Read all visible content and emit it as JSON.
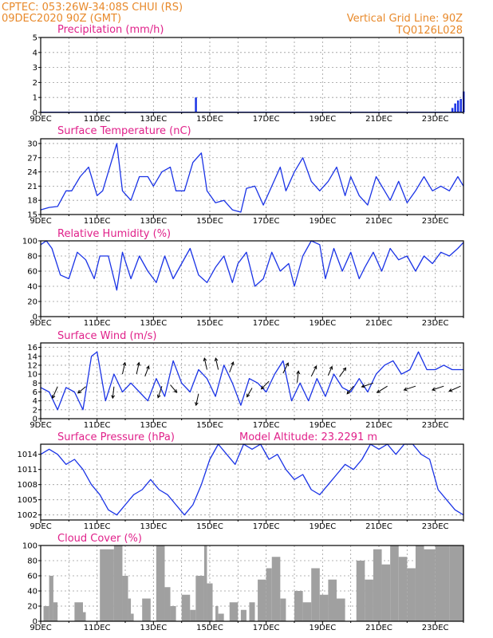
{
  "header": {
    "left_line1": "CPTEC:   053:26W-34:08S   CHUI (RS)",
    "left_line2": "09DEC2020 90Z (GMT)",
    "right_line1": "Vertical Grid Line: 90Z",
    "right_line2": "TQ0126L028"
  },
  "colors": {
    "header": "#e8892a",
    "title": "#e0218a",
    "series": "#1a33e6",
    "cloud": "#a0a0a0"
  },
  "x_tick_labels": [
    "9DEC",
    "11DEC",
    "13DEC",
    "15DEC",
    "17DEC",
    "19DEC",
    "21DEC",
    "23DEC"
  ],
  "panels": {
    "precip": {
      "title": "Precipitation (mm/h)"
    },
    "temp": {
      "title": "Surface Temperature (nC)"
    },
    "rh": {
      "title": "Relative Humidity (%)"
    },
    "wind": {
      "title": "Surface Wind (m/s)"
    },
    "pres": {
      "title": "Surface Pressure (hPa)",
      "extra": "Model Altitude: 23.2291 m"
    },
    "cloud": {
      "title": "Cloud Cover (%)"
    }
  },
  "chart_data": [
    {
      "id": "precip",
      "type": "bar",
      "ylabel": "Precipitation (mm/h)",
      "ylim": [
        0,
        5
      ],
      "yticks": [
        0,
        1,
        2,
        3,
        4,
        5
      ],
      "x": [
        5.5,
        14.6,
        14.7,
        14.8,
        14.9,
        15.0
      ],
      "values": [
        1.0,
        0.3,
        0.6,
        0.8,
        0.9,
        1.4
      ]
    },
    {
      "id": "temp",
      "type": "line",
      "ylabel": "Surface Temperature (nC)",
      "ylim": [
        15,
        31
      ],
      "yticks": [
        15,
        18,
        21,
        24,
        27,
        30
      ],
      "x": [
        0,
        0.3,
        0.6,
        0.9,
        1.1,
        1.4,
        1.7,
        2.0,
        2.2,
        2.4,
        2.7,
        2.9,
        3.2,
        3.5,
        3.8,
        4.0,
        4.3,
        4.6,
        4.8,
        5.1,
        5.4,
        5.7,
        5.9,
        6.2,
        6.5,
        6.8,
        7.1,
        7.3,
        7.6,
        7.9,
        8.2,
        8.5,
        8.7,
        9.0,
        9.3,
        9.6,
        9.9,
        10.2,
        10.5,
        10.8,
        11.0,
        11.3,
        11.6,
        11.9,
        12.2,
        12.4,
        12.7,
        13.0,
        13.3,
        13.6,
        13.9,
        14.2,
        14.5,
        14.8,
        15.0
      ],
      "values": [
        16,
        16.5,
        16.7,
        20,
        20,
        23,
        25,
        19,
        20,
        24,
        30,
        20,
        18,
        23,
        23,
        21,
        24,
        25,
        20,
        20,
        26,
        28,
        20,
        17.5,
        18,
        16,
        15.5,
        20.5,
        21,
        17,
        21,
        25,
        20,
        24,
        27,
        22,
        20,
        22,
        25,
        19,
        23,
        19,
        17,
        23,
        20,
        18,
        22,
        17.5,
        20,
        23,
        20,
        21,
        20,
        23,
        21
      ]
    },
    {
      "id": "rh",
      "type": "line",
      "ylabel": "Relative Humidity (%)",
      "ylim": [
        0,
        100
      ],
      "yticks": [
        0,
        20,
        40,
        60,
        80,
        100
      ],
      "x": [
        0,
        0.2,
        0.4,
        0.7,
        1.0,
        1.3,
        1.6,
        1.9,
        2.1,
        2.4,
        2.7,
        2.9,
        3.2,
        3.5,
        3.8,
        4.1,
        4.4,
        4.7,
        5.0,
        5.3,
        5.6,
        5.9,
        6.2,
        6.5,
        6.8,
        7.0,
        7.3,
        7.6,
        7.9,
        8.2,
        8.5,
        8.8,
        9.0,
        9.3,
        9.6,
        9.9,
        10.1,
        10.4,
        10.7,
        11.0,
        11.3,
        11.5,
        11.8,
        12.1,
        12.4,
        12.7,
        13.0,
        13.3,
        13.6,
        13.9,
        14.2,
        14.5,
        14.8,
        15.0
      ],
      "values": [
        95,
        100,
        90,
        55,
        50,
        85,
        75,
        50,
        80,
        80,
        35,
        85,
        50,
        80,
        60,
        45,
        80,
        50,
        70,
        90,
        55,
        45,
        65,
        80,
        45,
        70,
        85,
        40,
        50,
        85,
        60,
        70,
        40,
        80,
        100,
        95,
        50,
        90,
        60,
        85,
        50,
        65,
        85,
        60,
        90,
        75,
        80,
        60,
        80,
        70,
        85,
        80,
        90,
        98
      ]
    },
    {
      "id": "wind",
      "type": "line",
      "ylabel": "Surface Wind (m/s)",
      "ylim": [
        0,
        17
      ],
      "yticks": [
        0,
        2,
        4,
        6,
        8,
        10,
        12,
        14,
        16
      ],
      "x": [
        0,
        0.3,
        0.6,
        0.9,
        1.2,
        1.5,
        1.8,
        2.0,
        2.3,
        2.6,
        2.9,
        3.2,
        3.5,
        3.8,
        4.1,
        4.4,
        4.7,
        5.0,
        5.3,
        5.6,
        5.9,
        6.2,
        6.5,
        6.8,
        7.1,
        7.4,
        7.7,
        8.0,
        8.3,
        8.6,
        8.9,
        9.2,
        9.5,
        9.8,
        10.1,
        10.4,
        10.7,
        11.0,
        11.3,
        11.6,
        11.9,
        12.2,
        12.5,
        12.8,
        13.1,
        13.4,
        13.7,
        14.0,
        14.3,
        14.6,
        15.0
      ],
      "values": [
        7,
        6,
        2,
        7,
        6,
        2,
        14,
        15,
        4,
        10,
        6,
        8,
        6,
        4,
        9,
        5,
        13,
        8,
        6,
        11,
        9,
        5,
        12,
        8,
        3,
        9,
        8,
        6,
        10,
        13,
        4,
        8,
        4,
        9,
        5,
        10,
        7,
        6,
        9,
        6,
        10,
        12,
        13,
        10,
        11,
        15,
        11,
        11,
        12,
        11,
        11
      ],
      "arrows": [
        {
          "x": 0.6,
          "y": 7.2,
          "dx": -0.4,
          "dy": 0.9
        },
        {
          "x": 1.6,
          "y": 7.2,
          "dx": -0.6,
          "dy": 0.5
        },
        {
          "x": 2.6,
          "y": 7.2,
          "dx": -0.1,
          "dy": 0.9
        },
        {
          "x": 2.9,
          "y": 10.0,
          "dx": 0.2,
          "dy": -0.9
        },
        {
          "x": 3.4,
          "y": 10.0,
          "dx": 0.2,
          "dy": -0.9
        },
        {
          "x": 3.7,
          "y": 9.5,
          "dx": 0.3,
          "dy": -0.8
        },
        {
          "x": 4.3,
          "y": 7.3,
          "dx": -0.3,
          "dy": 0.9
        },
        {
          "x": 4.6,
          "y": 7.6,
          "dx": 0.5,
          "dy": 0.6
        },
        {
          "x": 5.6,
          "y": 5.6,
          "dx": -0.2,
          "dy": 0.9
        },
        {
          "x": 5.9,
          "y": 11.0,
          "dx": -0.2,
          "dy": -0.9
        },
        {
          "x": 6.3,
          "y": 11.0,
          "dx": -0.2,
          "dy": -0.9
        },
        {
          "x": 6.7,
          "y": 10.4,
          "dx": 0.3,
          "dy": -0.8
        },
        {
          "x": 7.5,
          "y": 6.9,
          "dx": -0.4,
          "dy": 0.7
        },
        {
          "x": 8.1,
          "y": 8.4,
          "dx": -0.6,
          "dy": 0.6
        },
        {
          "x": 8.6,
          "y": 10.2,
          "dx": 0.4,
          "dy": -0.8
        },
        {
          "x": 9.1,
          "y": 8.1,
          "dx": 0.1,
          "dy": -0.9
        },
        {
          "x": 9.6,
          "y": 9.5,
          "dx": 0.4,
          "dy": -0.8
        },
        {
          "x": 10.2,
          "y": 9.7,
          "dx": 0.3,
          "dy": -0.7
        },
        {
          "x": 10.6,
          "y": 9.4,
          "dx": 0.5,
          "dy": -0.7
        },
        {
          "x": 11.1,
          "y": 7.3,
          "dx": -0.5,
          "dy": 0.6
        },
        {
          "x": 11.8,
          "y": 8.0,
          "dx": -0.9,
          "dy": 0.3
        },
        {
          "x": 12.3,
          "y": 7.3,
          "dx": -0.8,
          "dy": 0.5
        },
        {
          "x": 13.3,
          "y": 7.3,
          "dx": -0.9,
          "dy": 0.3
        },
        {
          "x": 14.3,
          "y": 7.3,
          "dx": -0.9,
          "dy": 0.3
        },
        {
          "x": 14.9,
          "y": 7.3,
          "dx": -0.9,
          "dy": 0.4
        }
      ]
    },
    {
      "id": "pres",
      "type": "line",
      "ylabel": "Surface Pressure (hPa)",
      "ylim": [
        1001,
        1016
      ],
      "yticks": [
        1002,
        1005,
        1008,
        1011,
        1014
      ],
      "x": [
        0,
        0.3,
        0.6,
        0.9,
        1.2,
        1.5,
        1.8,
        2.1,
        2.4,
        2.7,
        3.0,
        3.3,
        3.6,
        3.9,
        4.2,
        4.5,
        4.8,
        5.1,
        5.4,
        5.7,
        6.0,
        6.3,
        6.6,
        6.9,
        7.2,
        7.5,
        7.8,
        8.1,
        8.4,
        8.7,
        9.0,
        9.3,
        9.6,
        9.9,
        10.2,
        10.5,
        10.8,
        11.1,
        11.4,
        11.7,
        12.0,
        12.3,
        12.6,
        12.9,
        13.2,
        13.5,
        13.8,
        14.1,
        14.4,
        14.7,
        15.0
      ],
      "values": [
        1014,
        1015,
        1014,
        1012,
        1013,
        1011,
        1008,
        1006,
        1003,
        1002,
        1004,
        1006,
        1007,
        1009,
        1007,
        1006,
        1004,
        1002,
        1004,
        1008,
        1013,
        1016,
        1014,
        1012,
        1016,
        1015,
        1016,
        1013,
        1014,
        1011,
        1009,
        1010,
        1007,
        1006,
        1008,
        1010,
        1012,
        1011,
        1013,
        1016,
        1015,
        1016,
        1014,
        1016,
        1016,
        1014,
        1013,
        1007,
        1005,
        1003,
        1002
      ]
    },
    {
      "id": "cloud",
      "type": "bar",
      "ylabel": "Cloud Cover (%)",
      "ylim": [
        0,
        100
      ],
      "yticks": [
        0,
        20,
        40,
        60,
        80,
        100
      ],
      "segments": [
        [
          0.1,
          0.3,
          20
        ],
        [
          0.3,
          0.45,
          60
        ],
        [
          0.45,
          0.6,
          25
        ],
        [
          1.2,
          1.5,
          25
        ],
        [
          1.5,
          1.6,
          12
        ],
        [
          2.1,
          2.6,
          95
        ],
        [
          2.6,
          2.9,
          100
        ],
        [
          2.9,
          3.1,
          60
        ],
        [
          3.1,
          3.2,
          30
        ],
        [
          3.2,
          3.3,
          10
        ],
        [
          3.6,
          3.9,
          30
        ],
        [
          4.1,
          4.4,
          100
        ],
        [
          4.4,
          4.6,
          45
        ],
        [
          4.6,
          4.8,
          20
        ],
        [
          5.0,
          5.3,
          35
        ],
        [
          5.3,
          5.5,
          15
        ],
        [
          5.5,
          5.8,
          60
        ],
        [
          5.8,
          5.9,
          100
        ],
        [
          5.9,
          6.1,
          50
        ],
        [
          6.2,
          6.3,
          20
        ],
        [
          6.3,
          6.5,
          10
        ],
        [
          6.7,
          7.0,
          25
        ],
        [
          7.1,
          7.3,
          15
        ],
        [
          7.4,
          7.6,
          25
        ],
        [
          7.7,
          8.0,
          55
        ],
        [
          8.0,
          8.2,
          70
        ],
        [
          8.2,
          8.5,
          85
        ],
        [
          8.5,
          8.7,
          30
        ],
        [
          9.0,
          9.3,
          40
        ],
        [
          9.3,
          9.6,
          25
        ],
        [
          9.6,
          9.9,
          70
        ],
        [
          9.9,
          10.2,
          35
        ],
        [
          10.2,
          10.5,
          55
        ],
        [
          10.5,
          10.8,
          30
        ],
        [
          11.2,
          11.5,
          80
        ],
        [
          11.5,
          11.8,
          55
        ],
        [
          11.8,
          12.1,
          95
        ],
        [
          12.1,
          12.4,
          75
        ],
        [
          12.4,
          12.7,
          100
        ],
        [
          12.7,
          13.0,
          85
        ],
        [
          13.0,
          13.3,
          70
        ],
        [
          13.3,
          13.6,
          100
        ],
        [
          13.6,
          14.0,
          95
        ],
        [
          14.0,
          14.5,
          100
        ],
        [
          14.5,
          15.0,
          100
        ]
      ]
    }
  ]
}
